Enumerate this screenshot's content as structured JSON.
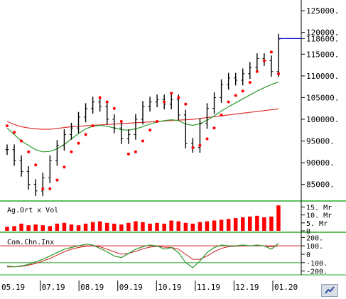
{
  "colors": {
    "bar": "#000000",
    "sar": "#ff0000",
    "ma_long": "#e03030",
    "ma_short": "#2a9a2a",
    "volume": "#ff0000",
    "current_price_line": "#0000cc",
    "axis": "#000000",
    "panel_separator": "#2aa82a",
    "cci": "#2a9a2a",
    "cci_signal": "#cc2020"
  },
  "chart_data": [
    {
      "type": "line",
      "title": "",
      "style": "OHLC bars with Parabolic SAR dots and two moving averages",
      "x_labels": [
        "05.19",
        "07.19",
        "08.19",
        "09.19",
        "10.19",
        "11.19",
        "12.19",
        "01.20"
      ],
      "y_tick_labels": [
        "85000.",
        "90000.",
        "95000.",
        "100000.",
        "105000.",
        "110000.",
        "115000.",
        "118600.",
        "120000.",
        "125000."
      ],
      "ylim": [
        82000,
        126500
      ],
      "current_price": 118600,
      "series": [
        {
          "role": "price_close",
          "values": [
            93000,
            90500,
            88000,
            85000,
            83500,
            86500,
            90500,
            94000,
            96500,
            98000,
            100500,
            102500,
            104000,
            103000,
            100000,
            98000,
            95500,
            96500,
            100000,
            103000,
            104000,
            104500,
            103500,
            104500,
            101000,
            94500,
            93500,
            99000,
            102500,
            105000,
            108000,
            109500,
            109000,
            110500,
            112000,
            114000,
            113500,
            111000,
            118500
          ]
        },
        {
          "role": "ma_long",
          "values": [
            99500,
            98800,
            98300,
            98000,
            97800,
            97700,
            97700,
            97900,
            98100,
            98300,
            98400,
            98500,
            98600,
            98700,
            98800,
            98900,
            99000,
            99100,
            99200,
            99300,
            99400,
            99500,
            99600,
            99700,
            99800,
            99900,
            100000,
            100200,
            100400,
            100600,
            100800,
            101000,
            101200,
            101400,
            101600,
            101800,
            102000,
            102200,
            102400
          ]
        },
        {
          "role": "ma_short",
          "values": [
            98000,
            96500,
            95000,
            94000,
            93000,
            92500,
            92600,
            93200,
            94200,
            95500,
            96700,
            97800,
            98400,
            98600,
            98400,
            98000,
            97600,
            97500,
            97800,
            98300,
            98900,
            99400,
            99700,
            99900,
            99700,
            98900,
            98600,
            99000,
            99800,
            100800,
            101900,
            102900,
            103800,
            104700,
            105600,
            106500,
            107300,
            108000,
            108600
          ]
        },
        {
          "role": "parabolic_sar",
          "values": [
            98500,
            97000,
            95000,
            92500,
            89500,
            84000,
            84000,
            86000,
            89000,
            92500,
            94500,
            96500,
            98500,
            105000,
            104000,
            102500,
            99500,
            92000,
            92500,
            95000,
            97500,
            99500,
            104000,
            106000,
            105000,
            103500,
            93500,
            94000,
            95500,
            98000,
            101000,
            104000,
            105500,
            106500,
            108500,
            111000,
            113500,
            115500,
            110500
          ]
        }
      ]
    },
    {
      "type": "bar",
      "title": "",
      "label": "Ag.Ort x Vol",
      "y_tick_labels": [
        "15. Mr",
        "10. Mr",
        "5. Mr",
        "0"
      ],
      "ylim": [
        0,
        17
      ],
      "values": [
        2.5,
        3.0,
        4.5,
        3.5,
        4.0,
        3.5,
        3.0,
        4.5,
        5.0,
        4.0,
        3.5,
        4.5,
        5.5,
        6.0,
        5.0,
        4.5,
        4.0,
        5.0,
        6.0,
        5.5,
        4.5,
        5.0,
        4.5,
        6.5,
        6.0,
        5.0,
        4.5,
        5.5,
        6.0,
        6.5,
        7.0,
        7.5,
        8.0,
        8.5,
        9.0,
        9.5,
        8.5,
        9.0,
        16.0
      ]
    },
    {
      "type": "line",
      "title": "",
      "label": "Com.Chn.Inx",
      "y_tick_labels": [
        "200.",
        "100.",
        "0",
        "-100.",
        "-200."
      ],
      "ylim": [
        -220,
        220
      ],
      "reference_lines": [
        100,
        -100
      ],
      "series": [
        {
          "role": "cci",
          "values": [
            -140,
            -150,
            -140,
            -120,
            -90,
            -60,
            -20,
            20,
            60,
            80,
            100,
            120,
            110,
            70,
            30,
            -20,
            -40,
            10,
            60,
            90,
            110,
            100,
            60,
            80,
            20,
            -100,
            -160,
            -80,
            20,
            80,
            110,
            100,
            100,
            110,
            100,
            110,
            100,
            60,
            130
          ]
        },
        {
          "role": "signal",
          "values": [
            -150,
            -150,
            -145,
            -130,
            -110,
            -80,
            -50,
            -10,
            30,
            60,
            80,
            95,
            100,
            90,
            60,
            30,
            0,
            10,
            35,
            65,
            85,
            95,
            85,
            80,
            60,
            0,
            -60,
            -60,
            -20,
            30,
            70,
            90,
            95,
            100,
            100,
            105,
            100,
            90,
            100
          ]
        }
      ]
    }
  ]
}
